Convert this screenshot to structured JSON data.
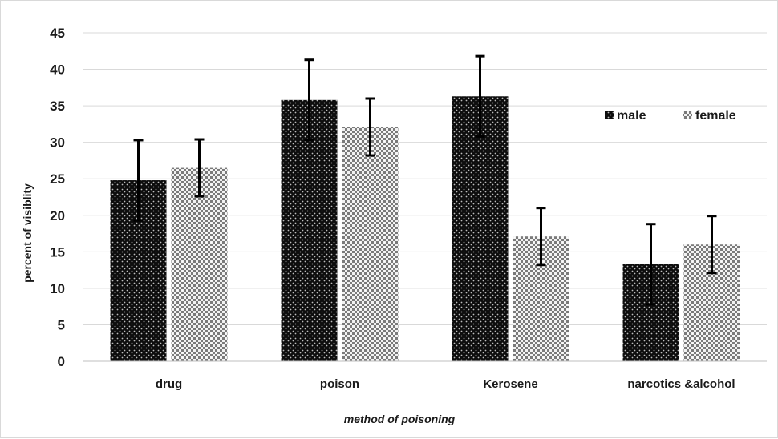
{
  "chart_data": {
    "type": "bar",
    "title": "",
    "xlabel": "method of poisoning",
    "ylabel": "percent of visiblity",
    "ylim": [
      0,
      45
    ],
    "yticks": [
      0,
      5,
      10,
      15,
      20,
      25,
      30,
      35,
      40,
      45
    ],
    "grid": true,
    "legend_position": "right",
    "categories": [
      "drug",
      "poison",
      "Kerosene",
      "narcotics &alcohol"
    ],
    "series": [
      {
        "name": "male",
        "color": "#111111",
        "pattern": "dark-dotted",
        "values": [
          24.8,
          35.8,
          36.3,
          13.3
        ],
        "error": [
          5.5,
          5.5,
          5.5,
          5.5
        ]
      },
      {
        "name": "female",
        "color": "#8a8a8a",
        "pattern": "light-checkered",
        "values": [
          26.5,
          32.1,
          17.1,
          16.0
        ],
        "error": [
          3.9,
          3.9,
          3.9,
          3.9
        ]
      }
    ]
  }
}
